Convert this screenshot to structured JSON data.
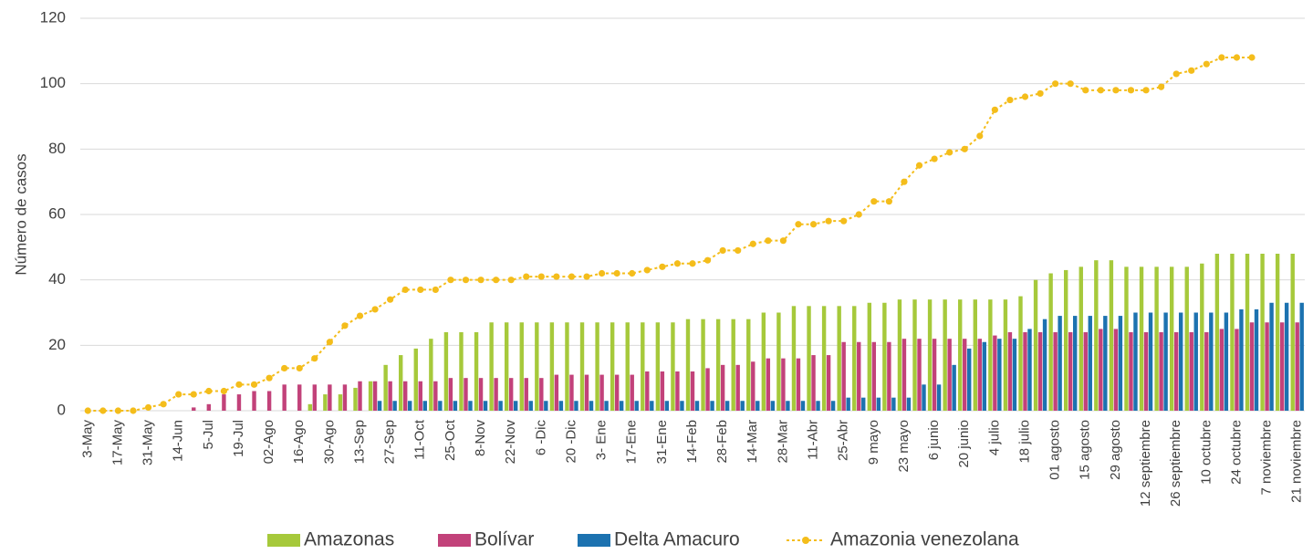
{
  "chart_data": {
    "type": "bar_line",
    "y_label": "Número de casos",
    "categories": [
      "3-May",
      null,
      "17-May",
      null,
      "31-May",
      null,
      "14-Jun",
      null,
      "5-Jul",
      null,
      "19-Jul",
      null,
      "02-Ago",
      null,
      "16-Ago",
      null,
      "30-Ago",
      null,
      "13-Sep",
      null,
      "27-Sep",
      null,
      "11-Oct",
      null,
      "25-Oct",
      null,
      "8-Nov",
      null,
      "22-Nov",
      null,
      "6 -Dic",
      null,
      "20 -Dic",
      null,
      "3- Ene",
      null,
      "17-Ene",
      null,
      "31-Ene",
      null,
      "14-Feb",
      null,
      "28-Feb",
      null,
      "14-Mar",
      null,
      "28-Mar",
      null,
      "11-Abr",
      null,
      "25-Abr",
      null,
      "9 mayo",
      null,
      "23 mayo",
      null,
      "6 junio",
      null,
      "20 junio",
      null,
      "4 julio",
      null,
      "18 julio",
      null,
      "01 agosto",
      null,
      "15 agosto",
      null,
      "29 agosto",
      null,
      "12 septiembre",
      null,
      "26 septiembre",
      null,
      "10 octubre",
      null,
      "24 octubre",
      null,
      "7 noviembre",
      null,
      "21 noviembre"
    ],
    "series": [
      {
        "name": "Amazonas",
        "kind": "bar",
        "color": "#a6c93b",
        "values": [
          0,
          0,
          0,
          0,
          0,
          0,
          0,
          0,
          0,
          0,
          0,
          0,
          0,
          0,
          0,
          2,
          5,
          5,
          7,
          9,
          14,
          17,
          19,
          22,
          24,
          24,
          24,
          27,
          27,
          27,
          27,
          27,
          27,
          27,
          27,
          27,
          27,
          27,
          27,
          27,
          28,
          28,
          28,
          28,
          28,
          30,
          30,
          32,
          32,
          32,
          32,
          32,
          33,
          33,
          34,
          34,
          34,
          34,
          34,
          34,
          34,
          34,
          35,
          40,
          42,
          43,
          44,
          46,
          46,
          44,
          44,
          44,
          44,
          44,
          45,
          48,
          48,
          48,
          48,
          48,
          48
        ]
      },
      {
        "name": "Bolívar",
        "kind": "bar",
        "color": "#c2427a",
        "values": [
          0,
          0,
          0,
          0,
          0,
          0,
          0,
          1,
          2,
          5,
          5,
          6,
          6,
          8,
          8,
          8,
          8,
          8,
          9,
          9,
          9,
          9,
          9,
          9,
          10,
          10,
          10,
          10,
          10,
          10,
          10,
          11,
          11,
          11,
          11,
          11,
          11,
          12,
          12,
          12,
          12,
          13,
          14,
          14,
          15,
          16,
          16,
          16,
          17,
          17,
          21,
          21,
          21,
          21,
          22,
          22,
          22,
          22,
          22,
          22,
          23,
          24,
          24,
          24,
          24,
          24,
          24,
          25,
          25,
          24,
          24,
          24,
          24,
          24,
          24,
          25,
          25,
          27,
          27,
          27,
          27
        ]
      },
      {
        "name": "Delta Amacuro",
        "kind": "bar",
        "color": "#1c72b0",
        "values": [
          0,
          0,
          0,
          0,
          0,
          0,
          0,
          0,
          0,
          0,
          0,
          0,
          0,
          0,
          0,
          0,
          0,
          0,
          0,
          3,
          3,
          3,
          3,
          3,
          3,
          3,
          3,
          3,
          3,
          3,
          3,
          3,
          3,
          3,
          3,
          3,
          3,
          3,
          3,
          3,
          3,
          3,
          3,
          3,
          3,
          3,
          3,
          3,
          3,
          3,
          4,
          4,
          4,
          4,
          4,
          8,
          8,
          14,
          19,
          21,
          22,
          22,
          25,
          28,
          29,
          29,
          29,
          29,
          29,
          30,
          30,
          30,
          30,
          30,
          30,
          30,
          31,
          31,
          33,
          33,
          33
        ]
      },
      {
        "name": "Amazonia venezolana",
        "kind": "line",
        "color": "#f4bd1b",
        "values": [
          0,
          0,
          0,
          0,
          1,
          2,
          5,
          5,
          6,
          6,
          8,
          8,
          10,
          13,
          13,
          16,
          21,
          26,
          29,
          31,
          34,
          37,
          37,
          37,
          40,
          40,
          40,
          40,
          40,
          41,
          41,
          41,
          41,
          41,
          42,
          42,
          42,
          43,
          44,
          45,
          45,
          46,
          49,
          49,
          51,
          52,
          52,
          57,
          57,
          58,
          58,
          60,
          64,
          64,
          70,
          75,
          77,
          79,
          80,
          84,
          92,
          95,
          96,
          97,
          100,
          100,
          98,
          98,
          98,
          98,
          98,
          99,
          103,
          104,
          106,
          108,
          108,
          108,
          null,
          null,
          null
        ]
      }
    ],
    "ylim": [
      0,
      120
    ],
    "yticks": [
      0,
      20,
      40,
      60,
      80,
      100,
      120
    ],
    "grid": true,
    "legend": "bottom"
  }
}
